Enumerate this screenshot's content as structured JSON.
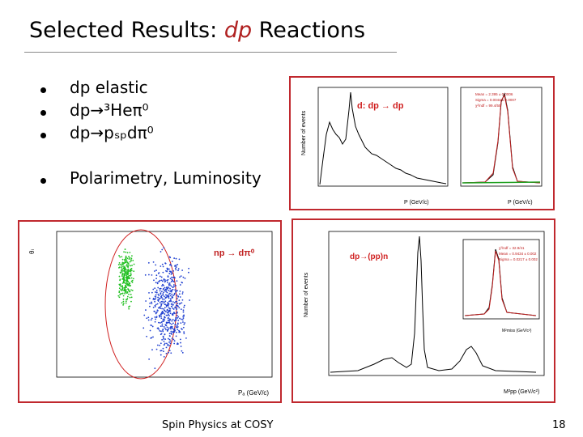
{
  "slide": {
    "title_prefix": "Selected Results: ",
    "title_emph": "dp",
    "title_suffix": " Reactions",
    "accent_color": "#b02020",
    "bullets": [
      {
        "label": "dp elastic"
      },
      {
        "label": "dp→³Heπ⁰"
      },
      {
        "label": "dp→pₛₚdπ⁰"
      },
      {
        "label": "Polarimetry, Luminosity"
      }
    ],
    "footer_center": "Spin Physics at COSY",
    "page_number": "18"
  },
  "panels": {
    "elastic": {
      "label": "d: dp → dp",
      "ylabel": "Number of events",
      "xlabel": "P (GeV/c)",
      "inset_xlabel": "P (GeV/c)",
      "inset_stats": [
        "Mean = 2.395 ± 0.0006",
        "Sigma = 0.0044 ± 0.0007",
        "χ²/ndf = 99.4/55"
      ]
    },
    "scatter": {
      "label": "np → dπ⁰",
      "ylabel": "θₗ",
      "xlabel": "Pₐ (GeV/c)"
    },
    "pp": {
      "label": "dp→(pp)n",
      "ylabel": "Number of events",
      "xlabel": "M²pp (GeV/c²)",
      "inset_stats": [
        "χ²/ndf = 32.9/41",
        "Mean = 0.9434 ± 0.002",
        "Sigma = 0.0217 ± 0.002"
      ],
      "inset_xlabel": "M²miss (GeV/c²)"
    }
  }
}
